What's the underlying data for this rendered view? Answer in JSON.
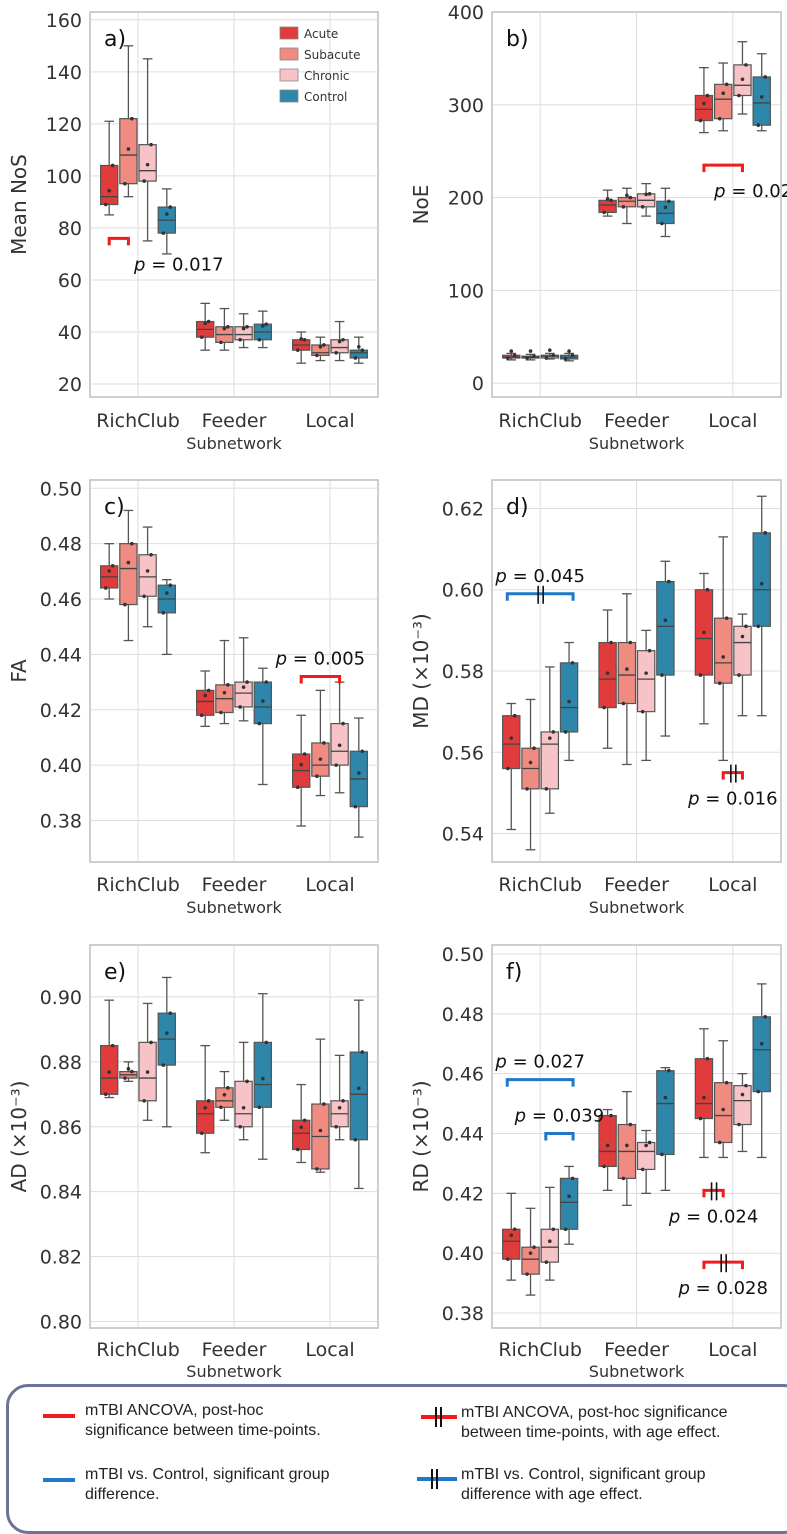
{
  "colors": {
    "Acute": "#e03c3c",
    "Subacute": "#ef8b80",
    "Chronic": "#f7c3c7",
    "Control": "#2e86ab",
    "grid": "#dddddd",
    "sig_red": "#ee1c1c",
    "sig_blue": "#1f78c8"
  },
  "chart_data": [
    {
      "type": "boxplot",
      "panel": "a)",
      "ylabel": "Mean NoS",
      "xlabel": "Subnetwork",
      "categories": [
        "RichClub",
        "Feeder",
        "Local"
      ],
      "ylim": [
        15,
        163
      ],
      "yticks": [
        20,
        40,
        60,
        80,
        100,
        120,
        140,
        160
      ],
      "ytick_labels": [
        "20",
        "40",
        "60",
        "80",
        "100",
        "120",
        "140",
        "160"
      ],
      "legend": {
        "position": "top-right",
        "entries": [
          "Acute",
          "Subacute",
          "Chronic",
          "Control"
        ]
      },
      "series": [
        {
          "name": "Acute",
          "boxes": [
            [
              85,
              89,
              92,
              104,
              121
            ],
            [
              33,
              38,
              41,
              44,
              51
            ],
            [
              28,
              33,
              35,
              37,
              40
            ]
          ]
        },
        {
          "name": "Subacute",
          "boxes": [
            [
              92,
              97,
              108,
              122,
              150
            ],
            [
              33,
              36,
              39,
              42,
              49
            ],
            [
              29,
              31,
              32,
              35,
              38
            ]
          ]
        },
        {
          "name": "Chronic",
          "boxes": [
            [
              75,
              98,
              102,
              112,
              145
            ],
            [
              34,
              37,
              39,
              42,
              47
            ],
            [
              29,
              32,
              34,
              37,
              44
            ]
          ]
        },
        {
          "name": "Control",
          "boxes": [
            [
              70,
              78,
              83,
              88,
              95
            ],
            [
              34,
              37,
              40,
              43,
              48
            ],
            [
              28,
              30,
              32,
              33,
              38
            ]
          ]
        }
      ],
      "annotations": [
        {
          "text": "p = 0.017",
          "kind": "time",
          "between": "Acute vs Subacute",
          "group": "RichClub",
          "y": 76
        }
      ]
    },
    {
      "type": "boxplot",
      "panel": "b)",
      "ylabel": "NoE",
      "xlabel": "Subnetwork",
      "categories": [
        "RichClub",
        "Feeder",
        "Local"
      ],
      "ylim": [
        -15,
        400
      ],
      "yticks": [
        0,
        100,
        200,
        300,
        400
      ],
      "ytick_labels": [
        "0",
        "100",
        "200",
        "300",
        "400"
      ],
      "series": [
        {
          "name": "Acute",
          "boxes": [
            [
              25,
              27,
              28,
              30,
              32
            ],
            [
              180,
              184,
              192,
              197,
              208
            ],
            [
              270,
              283,
              295,
              310,
              340
            ]
          ]
        },
        {
          "name": "Subacute",
          "boxes": [
            [
              25,
              27,
              28,
              29,
              31
            ],
            [
              172,
              190,
              196,
              200,
              210
            ],
            [
              272,
              285,
              306,
              322,
              345
            ]
          ]
        },
        {
          "name": "Chronic",
          "boxes": [
            [
              26,
              27,
              29,
              30,
              32
            ],
            [
              180,
              190,
              197,
              204,
              215
            ],
            [
              290,
              310,
              321,
              343,
              368
            ]
          ]
        },
        {
          "name": "Control",
          "boxes": [
            [
              24,
              26,
              28,
              30,
              32
            ],
            [
              158,
              172,
              183,
              196,
              210
            ],
            [
              272,
              278,
              302,
              330,
              355
            ]
          ]
        }
      ],
      "annotations": [
        {
          "text": "p = 0.02",
          "kind": "time",
          "between": "Acute vs Chronic",
          "group": "Local",
          "y": 235
        }
      ]
    },
    {
      "type": "boxplot",
      "panel": "c)",
      "ylabel": "FA",
      "xlabel": "Subnetwork",
      "categories": [
        "RichClub",
        "Feeder",
        "Local"
      ],
      "ylim": [
        0.365,
        0.503
      ],
      "yticks": [
        0.38,
        0.4,
        0.42,
        0.44,
        0.46,
        0.48,
        0.5
      ],
      "ytick_labels": [
        "0.38",
        "0.40",
        "0.42",
        "0.44",
        "0.46",
        "0.48",
        "0.50"
      ],
      "series": [
        {
          "name": "Acute",
          "boxes": [
            [
              0.46,
              0.464,
              0.468,
              0.472,
              0.48
            ],
            [
              0.414,
              0.418,
              0.423,
              0.427,
              0.434
            ],
            [
              0.378,
              0.392,
              0.398,
              0.404,
              0.418
            ]
          ]
        },
        {
          "name": "Subacute",
          "boxes": [
            [
              0.445,
              0.458,
              0.471,
              0.48,
              0.492
            ],
            [
              0.415,
              0.419,
              0.424,
              0.429,
              0.445
            ],
            [
              0.389,
              0.396,
              0.4,
              0.408,
              0.427
            ]
          ]
        },
        {
          "name": "Chronic",
          "boxes": [
            [
              0.45,
              0.461,
              0.468,
              0.476,
              0.486
            ],
            [
              0.416,
              0.421,
              0.426,
              0.43,
              0.446
            ],
            [
              0.39,
              0.4,
              0.405,
              0.415,
              0.43
            ]
          ]
        },
        {
          "name": "Control",
          "boxes": [
            [
              0.44,
              0.455,
              0.46,
              0.465,
              0.467
            ],
            [
              0.393,
              0.415,
              0.421,
              0.43,
              0.435
            ],
            [
              0.374,
              0.385,
              0.395,
              0.405,
              0.417
            ]
          ]
        }
      ],
      "annotations": [
        {
          "text": "p = 0.005",
          "kind": "time",
          "between": "Acute vs Chronic",
          "group": "Local",
          "y": 0.432
        }
      ]
    },
    {
      "type": "boxplot",
      "panel": "d)",
      "ylabel": "MD (×10⁻³)",
      "xlabel": "Subnetwork",
      "categories": [
        "RichClub",
        "Feeder",
        "Local"
      ],
      "ylim": [
        0.533,
        0.627
      ],
      "yticks": [
        0.54,
        0.56,
        0.58,
        0.6,
        0.62
      ],
      "ytick_labels": [
        "0.54",
        "0.56",
        "0.58",
        "0.60",
        "0.62"
      ],
      "series": [
        {
          "name": "Acute",
          "boxes": [
            [
              0.541,
              0.556,
              0.562,
              0.569,
              0.572
            ],
            [
              0.561,
              0.571,
              0.578,
              0.587,
              0.595
            ],
            [
              0.567,
              0.579,
              0.588,
              0.6,
              0.604
            ]
          ]
        },
        {
          "name": "Subacute",
          "boxes": [
            [
              0.536,
              0.551,
              0.556,
              0.561,
              0.573
            ],
            [
              0.557,
              0.572,
              0.579,
              0.587,
              0.599
            ],
            [
              0.558,
              0.577,
              0.582,
              0.593,
              0.613
            ]
          ]
        },
        {
          "name": "Chronic",
          "boxes": [
            [
              0.545,
              0.551,
              0.562,
              0.565,
              0.581
            ],
            [
              0.558,
              0.57,
              0.578,
              0.585,
              0.59
            ],
            [
              0.569,
              0.579,
              0.587,
              0.591,
              0.594
            ]
          ]
        },
        {
          "name": "Control",
          "boxes": [
            [
              0.558,
              0.565,
              0.571,
              0.582,
              0.587
            ],
            [
              0.564,
              0.579,
              0.591,
              0.602,
              0.607
            ],
            [
              0.569,
              0.591,
              0.6,
              0.614,
              0.623
            ]
          ]
        }
      ],
      "annotations": [
        {
          "text": "p = 0.045",
          "kind": "group-age",
          "between": "mTBI vs Control",
          "group": "RichClub",
          "y": 0.599
        },
        {
          "text": "p = 0.016",
          "kind": "time-age",
          "between": "Subacute vs Chronic",
          "group": "Local",
          "y": 0.555
        }
      ]
    },
    {
      "type": "boxplot",
      "panel": "e)",
      "ylabel": "AD (×10⁻³)",
      "xlabel": "Subnetwork",
      "categories": [
        "RichClub",
        "Feeder",
        "Local"
      ],
      "ylim": [
        0.798,
        0.916
      ],
      "yticks": [
        0.8,
        0.82,
        0.84,
        0.86,
        0.88,
        0.9
      ],
      "ytick_labels": [
        "0.80",
        "0.82",
        "0.84",
        "0.86",
        "0.88",
        "0.90"
      ],
      "series": [
        {
          "name": "Acute",
          "boxes": [
            [
              0.869,
              0.87,
              0.875,
              0.885,
              0.899
            ],
            [
              0.852,
              0.858,
              0.864,
              0.868,
              0.885
            ],
            [
              0.849,
              0.853,
              0.858,
              0.862,
              0.873
            ]
          ]
        },
        {
          "name": "Subacute",
          "boxes": [
            [
              0.874,
              0.875,
              0.876,
              0.877,
              0.88
            ],
            [
              0.862,
              0.866,
              0.868,
              0.872,
              0.877
            ],
            [
              0.846,
              0.847,
              0.857,
              0.867,
              0.887
            ]
          ]
        },
        {
          "name": "Chronic",
          "boxes": [
            [
              0.862,
              0.868,
              0.875,
              0.886,
              0.898
            ],
            [
              0.856,
              0.86,
              0.864,
              0.874,
              0.886
            ],
            [
              0.856,
              0.86,
              0.864,
              0.868,
              0.882
            ]
          ]
        },
        {
          "name": "Control",
          "boxes": [
            [
              0.86,
              0.879,
              0.887,
              0.895,
              0.906
            ],
            [
              0.85,
              0.866,
              0.873,
              0.886,
              0.901
            ],
            [
              0.841,
              0.856,
              0.87,
              0.883,
              0.899
            ]
          ]
        }
      ],
      "annotations": []
    },
    {
      "type": "boxplot",
      "panel": "f)",
      "ylabel": "RD (×10⁻³)",
      "xlabel": "Subnetwork",
      "categories": [
        "RichClub",
        "Feeder",
        "Local"
      ],
      "ylim": [
        0.375,
        0.503
      ],
      "yticks": [
        0.38,
        0.4,
        0.42,
        0.44,
        0.46,
        0.48,
        0.5
      ],
      "ytick_labels": [
        "0.38",
        "0.40",
        "0.42",
        "0.44",
        "0.46",
        "0.48",
        "0.50"
      ],
      "series": [
        {
          "name": "Acute",
          "boxes": [
            [
              0.391,
              0.398,
              0.404,
              0.408,
              0.42
            ],
            [
              0.421,
              0.429,
              0.434,
              0.446,
              0.448
            ],
            [
              0.432,
              0.445,
              0.45,
              0.465,
              0.475
            ]
          ]
        },
        {
          "name": "Subacute",
          "boxes": [
            [
              0.386,
              0.393,
              0.398,
              0.402,
              0.415
            ],
            [
              0.416,
              0.425,
              0.434,
              0.443,
              0.454
            ],
            [
              0.432,
              0.437,
              0.446,
              0.457,
              0.471
            ]
          ]
        },
        {
          "name": "Chronic",
          "boxes": [
            [
              0.391,
              0.397,
              0.402,
              0.408,
              0.422
            ],
            [
              0.42,
              0.428,
              0.434,
              0.437,
              0.441
            ],
            [
              0.434,
              0.443,
              0.451,
              0.456,
              0.46
            ]
          ]
        },
        {
          "name": "Control",
          "boxes": [
            [
              0.403,
              0.408,
              0.417,
              0.425,
              0.429
            ],
            [
              0.421,
              0.433,
              0.45,
              0.461,
              0.462
            ],
            [
              0.432,
              0.454,
              0.468,
              0.479,
              0.49
            ]
          ]
        }
      ],
      "annotations": [
        {
          "text": "p = 0.027",
          "kind": "group",
          "between": "mTBI vs Control",
          "group": "RichClub",
          "y": 0.458
        },
        {
          "text": "p = 0.039",
          "kind": "group",
          "between": "Chronic vs Control",
          "group": "RichClub",
          "y": 0.44
        },
        {
          "text": "p = 0.024",
          "kind": "time-age",
          "between": "Acute vs Subacute",
          "group": "Local",
          "y": 0.421
        },
        {
          "text": "p = 0.028",
          "kind": "time-age",
          "between": "Acute vs Chronic",
          "group": "Local",
          "y": 0.397
        }
      ]
    }
  ],
  "key": {
    "time": {
      "line1": "mTBI ANCOVA, post-hoc",
      "line2": "significance between time-points."
    },
    "time_age": {
      "line1": "mTBI ANCOVA, post-hoc significance",
      "line2": "between time-points, with age effect."
    },
    "group": {
      "line1": "mTBI vs. Control, significant group",
      "line2": "difference."
    },
    "group_age": {
      "line1": "mTBI vs. Control, significant group",
      "line2": "difference with age effect."
    }
  }
}
